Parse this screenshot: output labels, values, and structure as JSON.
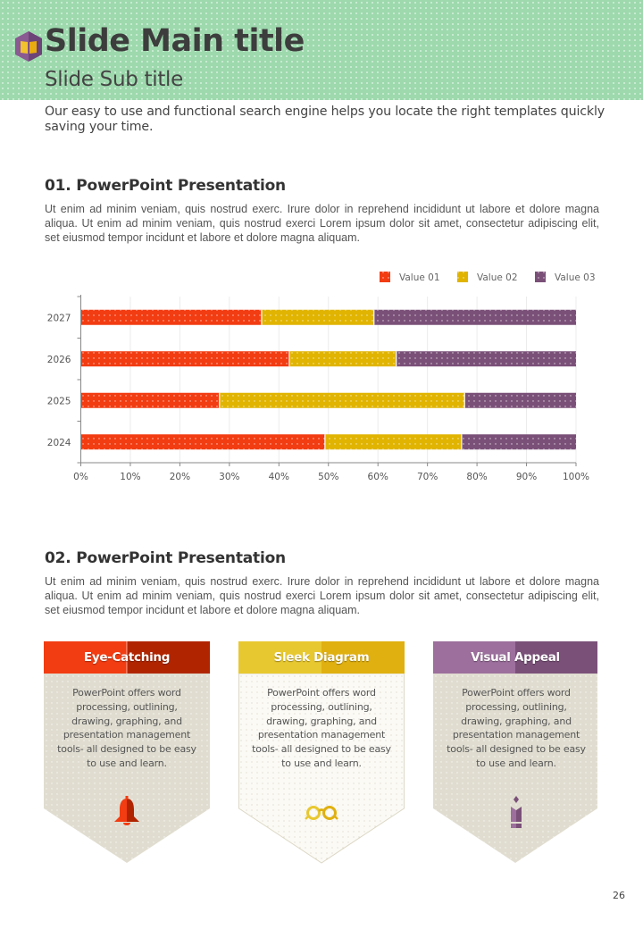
{
  "header": {
    "main_title": "Slide Main title",
    "sub_title": "Slide Sub title",
    "logo_icon": "book-hexagon-icon",
    "background_color": "#9dd9ad"
  },
  "intro": "Our easy to use and functional search engine helps you locate the right templates quickly saving your time.",
  "section1": {
    "title": "01. PowerPoint Presentation",
    "body": "Ut enim ad minim veniam, quis nostrud exerc. Irure dolor in reprehend incididunt ut labore et dolore magna aliqua. Ut enim ad minim veniam, quis nostrud exerci  Lorem ipsum dolor sit amet, consectetur adipiscing elit, set eiusmod tempor incidunt et labore et dolore magna aliquam."
  },
  "chart_data": {
    "type": "bar",
    "orientation": "horizontal",
    "stacked": "percent",
    "title": "",
    "xlabel": "",
    "ylabel": "",
    "categories": [
      "2024",
      "2025",
      "2026",
      "2027"
    ],
    "series": [
      {
        "name": "Value 01",
        "color": "#f23c12",
        "values": [
          49.3,
          28.0,
          42.1,
          36.5
        ]
      },
      {
        "name": "Value 02",
        "color": "#e0b400",
        "values": [
          27.6,
          49.5,
          21.6,
          22.7
        ]
      },
      {
        "name": "Value 03",
        "color": "#7a5078",
        "values": [
          23.1,
          22.5,
          36.3,
          40.8
        ]
      }
    ],
    "xlim": [
      0,
      100
    ],
    "xticks": [
      "0%",
      "10%",
      "20%",
      "30%",
      "40%",
      "50%",
      "60%",
      "70%",
      "80%",
      "90%",
      "100%"
    ],
    "grid": true,
    "legend": "top-right"
  },
  "section2": {
    "title": "02. PowerPoint Presentation",
    "body": "Ut enim ad minim veniam, quis nostrud exerc. Irure dolor in reprehend incididunt ut labore et dolore magna aliqua. Ut enim ad minim veniam, quis nostrud exerci  Lorem ipsum dolor sit amet, consectetur adipiscing elit, set eiusmod tempor incidunt et labore et dolore magna aliquam."
  },
  "cards": [
    {
      "title": "Eye-Catching",
      "text": "PowerPoint offers word processing, outlining, drawing, graphing, and presentation management tools- all designed to be easy to use and learn.",
      "icon": "bell-icon",
      "color_light": "#f23c12",
      "color_dark": "#b02500",
      "body_color": "#e0ddd0"
    },
    {
      "title": "Sleek Diagram",
      "text": "PowerPoint offers word processing, outlining, drawing, graphing, and presentation management tools- all designed to be easy to use and learn.",
      "icon": "glasses-icon",
      "color_light": "#e8c830",
      "color_dark": "#e0b010",
      "body_color": "#fbfaf5"
    },
    {
      "title": "Visual Appeal",
      "text": "PowerPoint offers word processing, outlining, drawing, graphing, and presentation management tools- all designed to be easy to use and learn.",
      "icon": "pencil-icon",
      "color_light": "#9c6f9c",
      "color_dark": "#7a5078",
      "body_color": "#e0ddd0"
    }
  ],
  "page_number": "26"
}
